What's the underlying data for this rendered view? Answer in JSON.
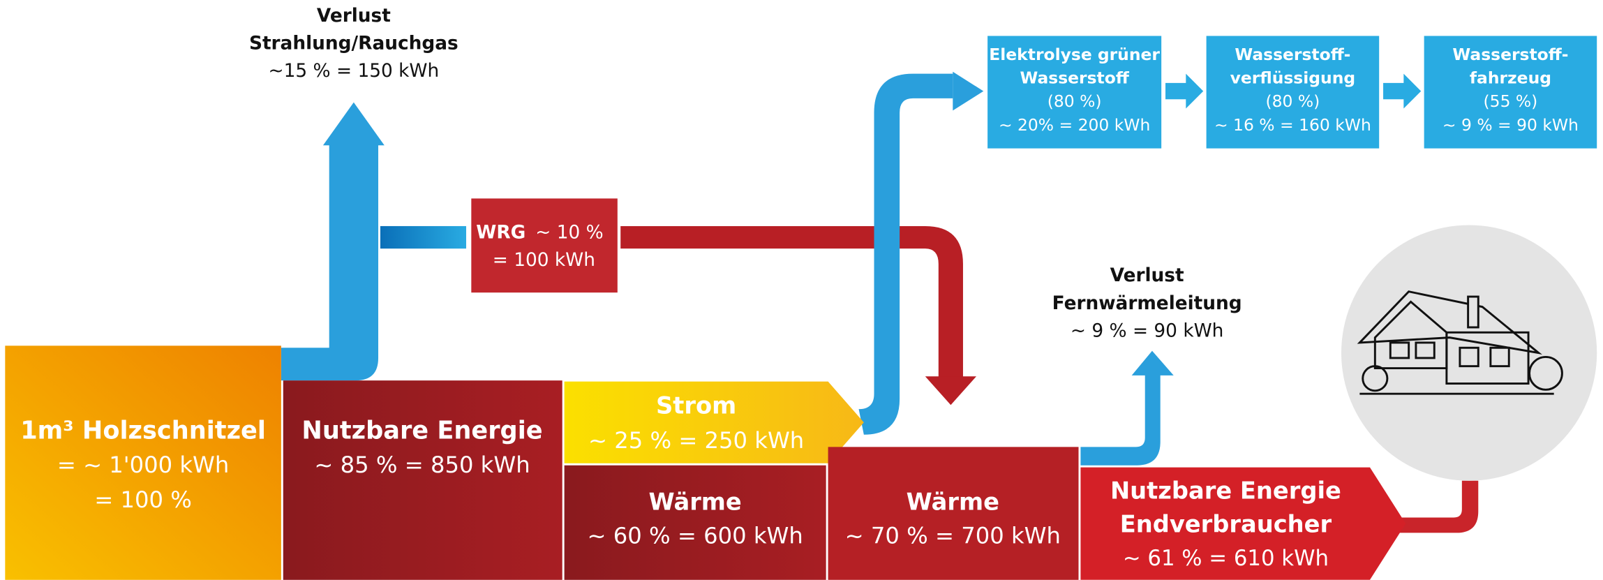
{
  "source": {
    "title": "1m³ Holzschnitzel",
    "lines": [
      "= ~ 1'000 kWh",
      "= 100 %"
    ]
  },
  "loss_flue": {
    "title": "Verlust",
    "subtitle": "Strahlung/Rauchgas",
    "value": "~15 % = 150 kWh"
  },
  "usable": {
    "title": "Nutzbare Energie",
    "value": "~ 85 % = 850 kWh"
  },
  "wrg": {
    "title": "WRG",
    "share": "~ 10 %",
    "value": "= 100 kWh"
  },
  "strom": {
    "title": "Strom",
    "value": "~ 25 % = 250 kWh"
  },
  "heat_plant": {
    "title": "Wärme",
    "value": "~ 60 % = 600 kWh"
  },
  "heat_grid": {
    "title": "Wärme",
    "value": "~ 70 % = 700 kWh"
  },
  "loss_grid": {
    "title": "Verlust",
    "subtitle": "Fernwärmeleitung",
    "value": "~ 9 % = 90 kWh"
  },
  "end_user": {
    "title": "Nutzbare Energie",
    "subtitle": "Endverbraucher",
    "value": "~ 61 % = 610 kWh"
  },
  "hydrogen": [
    {
      "title": [
        "Elektrolyse grüner",
        "Wasserstoff"
      ],
      "efficiency": "(80 %)",
      "value": "~ 20% = 200 kWh"
    },
    {
      "title": [
        "Wasserstoff-",
        "verflüssigung"
      ],
      "efficiency": "(80 %)",
      "value": "~ 16 % = 160 kWh"
    },
    {
      "title": [
        "Wasserstoff-",
        "fahrzeug"
      ],
      "efficiency": "(55 %)",
      "value": "~ 9 % = 90 kWh"
    }
  ]
}
